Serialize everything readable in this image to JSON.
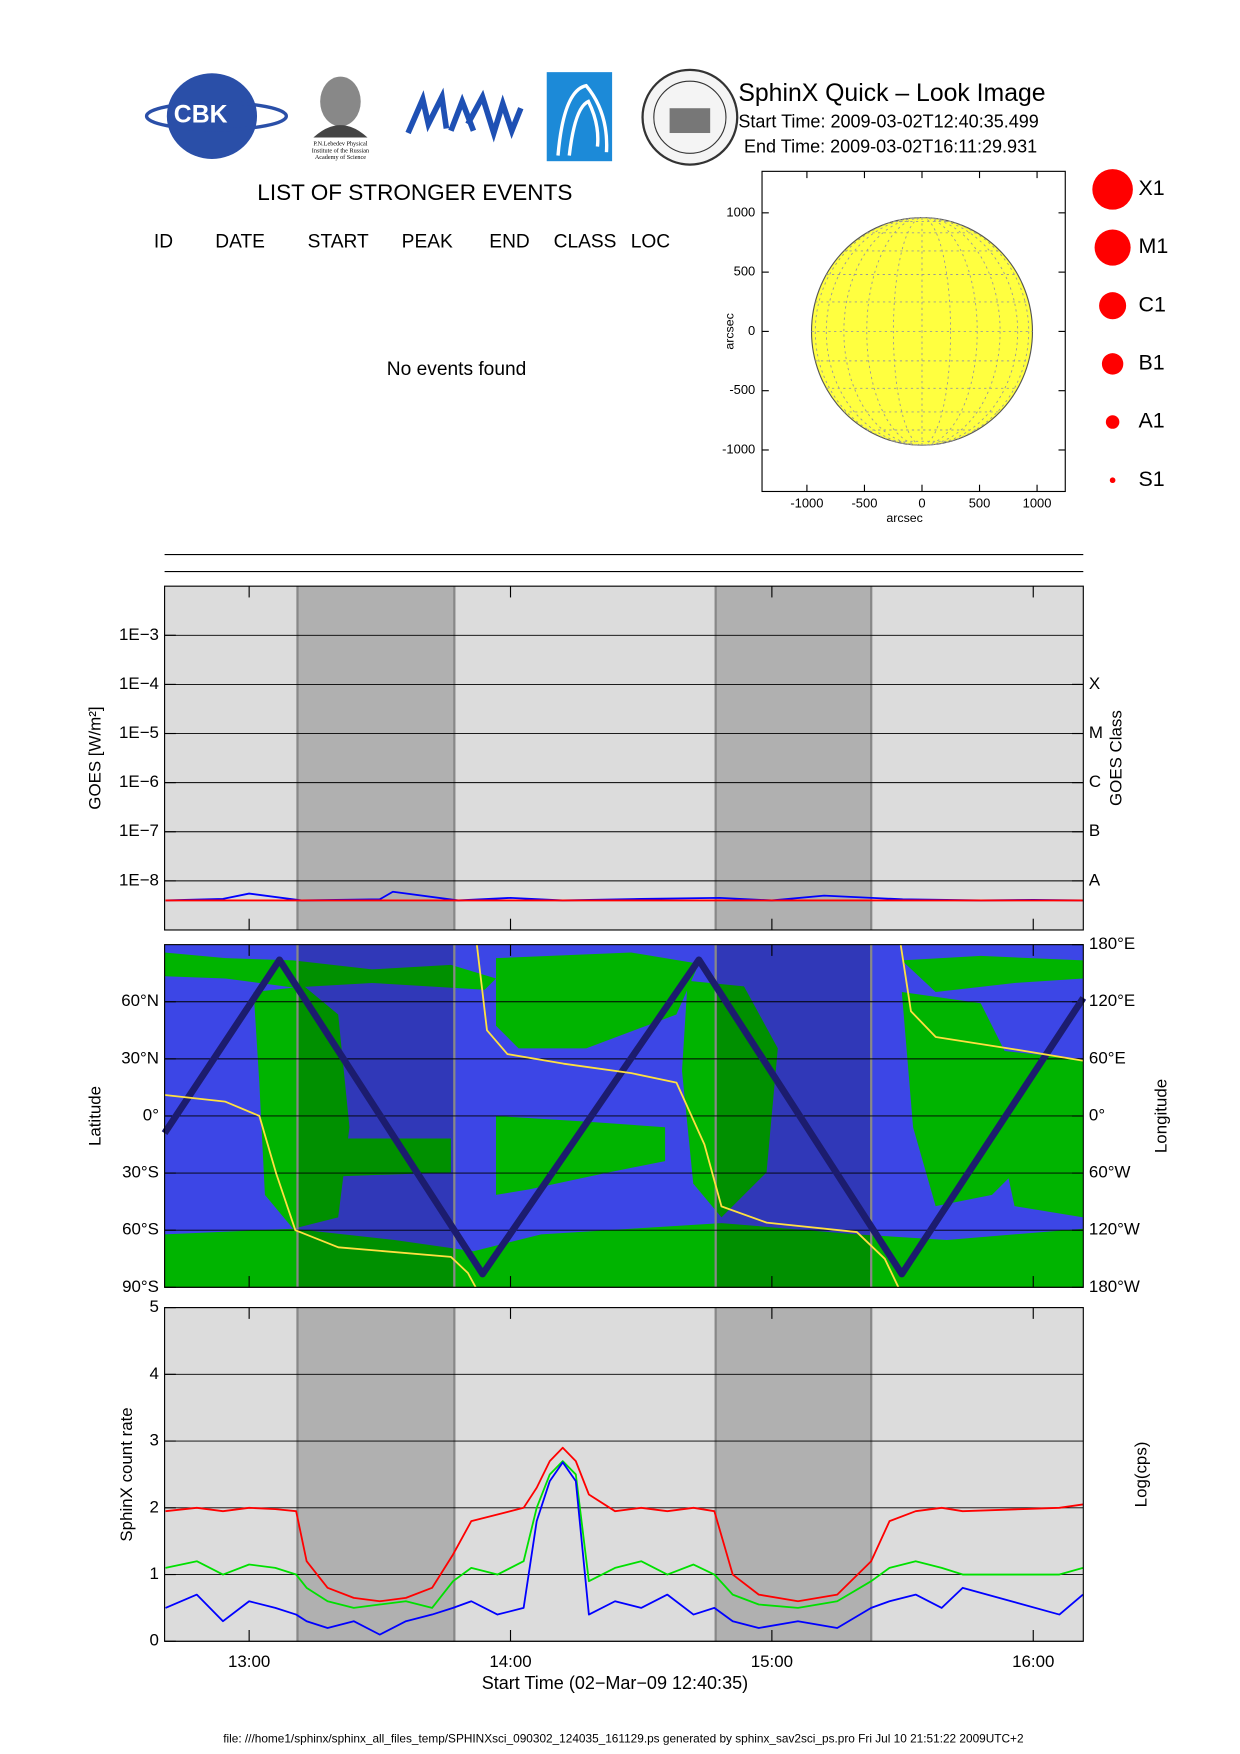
{
  "header": {
    "title": "SphinX Quick – Look Image",
    "start_time": "Start Time: 2009-03-02T12:40:35.499",
    "end_time": "End Time: 2009-03-02T16:11:29.931",
    "cbk_logo": "CBK",
    "lebedev_caption": [
      "P.N.Lebedev Physical",
      "Institute of the Russian",
      "Academy of Science"
    ]
  },
  "events": {
    "title": "LIST OF STRONGER EVENTS",
    "columns": [
      "ID",
      "DATE",
      "START",
      "PEAK",
      "END",
      "CLASS",
      "LOC"
    ],
    "message": "No events found"
  },
  "chart_data": [
    {
      "type": "disk",
      "xlabel": "arcsec",
      "ylabel": "arcsec",
      "xlim": [
        -1390,
        1245
      ],
      "ylim": [
        -1350,
        1350
      ],
      "xticks": [
        -1000,
        -500,
        0,
        500,
        1000
      ],
      "yticks": [
        -1000,
        -500,
        0,
        500,
        1000
      ],
      "radius": 960,
      "color": "#ffff40",
      "legend": [
        "X1",
        "M1",
        "C1",
        "B1",
        "A1",
        "S1"
      ],
      "legend_color": "#ff0000"
    },
    {
      "type": "line",
      "log": true,
      "ylabel": "GOES [W/m²]",
      "y2label": "GOES Class",
      "background": "#dcdcdc",
      "grid": true,
      "xlim": [
        12.6765,
        16.1915
      ],
      "xticks": [
        13,
        14,
        15,
        16
      ],
      "shaded": [
        [
          13.185,
          13.785
        ],
        [
          14.785,
          15.38
        ]
      ],
      "ylim": [
        1e-09,
        0.01
      ],
      "yticks": [
        {
          "value": 0.001,
          "label": "1E−3"
        },
        {
          "value": 0.0001,
          "label": "1E−4"
        },
        {
          "value": 1e-05,
          "label": "1E−5"
        },
        {
          "value": 1e-06,
          "label": "1E−6"
        },
        {
          "value": 1e-07,
          "label": "1E−7"
        },
        {
          "value": 1e-08,
          "label": "1E−8"
        }
      ],
      "y2ticks": [
        {
          "value": 0.0001,
          "label": "X"
        },
        {
          "value": 1e-05,
          "label": "M"
        },
        {
          "value": 1e-06,
          "label": "C"
        },
        {
          "value": 1e-07,
          "label": "B"
        },
        {
          "value": 1e-08,
          "label": "A"
        }
      ],
      "x": [
        12.68,
        12.9,
        13.0,
        13.2,
        13.5,
        13.55,
        13.8,
        14.0,
        14.2,
        14.5,
        14.8,
        15.0,
        15.2,
        15.5,
        15.8,
        16.0,
        16.19
      ],
      "series": [
        {
          "color": "#0000ff",
          "values": [
            4e-09,
            4.3e-09,
            5.5e-09,
            4e-09,
            4.2e-09,
            6e-09,
            4e-09,
            4.5e-09,
            4e-09,
            4.3e-09,
            4.5e-09,
            4e-09,
            5e-09,
            4.2e-09,
            4e-09,
            4.1e-09,
            4e-09
          ]
        },
        {
          "color": "#ff0000",
          "values": [
            4e-09,
            4e-09,
            4e-09,
            4e-09,
            4e-09,
            4e-09,
            4e-09,
            4e-09,
            4e-09,
            4e-09,
            4e-09,
            4e-09,
            4e-09,
            4e-09,
            4e-09,
            4e-09,
            4e-09
          ]
        }
      ]
    },
    {
      "type": "line",
      "ylabel": "Latitude",
      "y2label": "Longitude",
      "background": "#3c46e6",
      "grid": true,
      "xlim": [
        12.6765,
        16.1915
      ],
      "xticks": [
        13,
        14,
        15,
        16
      ],
      "shaded": [
        [
          13.185,
          13.785
        ],
        [
          14.785,
          15.38
        ]
      ],
      "ylim": [
        -90,
        90
      ],
      "yticks": [
        {
          "value": 60,
          "label": "60°N"
        },
        {
          "value": 30,
          "label": "30°N"
        },
        {
          "value": 0,
          "label": "0°"
        },
        {
          "value": -30,
          "label": "30°S"
        },
        {
          "value": -60,
          "label": "60°S"
        },
        {
          "value": -90,
          "label": "90°S"
        }
      ],
      "y2lim": [
        -180,
        180
      ],
      "y2ticks": [
        {
          "value": 180,
          "label": "180°E"
        },
        {
          "value": 120,
          "label": "120°E"
        },
        {
          "value": 60,
          "label": "60°E"
        },
        {
          "value": 0,
          "label": "0°"
        },
        {
          "value": -60,
          "label": "60°W"
        },
        {
          "value": -120,
          "label": "120°W"
        },
        {
          "value": -180,
          "label": "180°W"
        }
      ],
      "series": [
        {
          "color": "#1c1c6e",
          "x": [
            12.6765,
            13.116,
            13.893,
            14.721,
            15.497,
            16.1915
          ],
          "values": [
            -9,
            82,
            -83,
            82,
            -83,
            62
          ]
        },
        {
          "color": "#ffe040",
          "axis": "y2",
          "x": [
            12.677,
            12.909,
            13.039,
            13.103,
            13.177,
            13.341,
            13.772,
            13.837,
            13.867,
            13.869,
            13.871,
            13.91,
            13.988,
            14.203,
            14.462,
            14.635,
            14.742,
            14.807,
            14.98,
            15.325,
            15.432,
            15.484,
            15.488,
            15.493,
            15.532,
            15.627,
            15.929,
            16.192
          ],
          "values": [
            22,
            15,
            0,
            -60,
            -120,
            -138,
            -148,
            -165,
            -180,
            null,
            180,
            90,
            65,
            55,
            45,
            35,
            -30,
            -95,
            -112,
            -122,
            -150,
            -180,
            null,
            180,
            110,
            83,
            70,
            58
          ]
        }
      ]
    },
    {
      "type": "line",
      "ylabel": "SphinX count rate",
      "y2label": "Log(cps)",
      "xlabel": "Start Time (02−Mar−09 12:40:35)",
      "background": "#dcdcdc",
      "grid": true,
      "xlim": [
        12.6765,
        16.1915
      ],
      "xticks": [
        {
          "value": 13,
          "label": "13:00"
        },
        {
          "value": 14,
          "label": "14:00"
        },
        {
          "value": 15,
          "label": "15:00"
        },
        {
          "value": 16,
          "label": "16:00"
        }
      ],
      "shaded": [
        [
          13.185,
          13.785
        ],
        [
          14.785,
          15.38
        ]
      ],
      "ylim": [
        0,
        5
      ],
      "yticks": [
        0,
        1,
        2,
        3,
        4,
        5
      ],
      "x": [
        12.68,
        12.8,
        12.9,
        13.0,
        13.1,
        13.18,
        13.22,
        13.3,
        13.4,
        13.5,
        13.6,
        13.7,
        13.78,
        13.85,
        13.95,
        14.05,
        14.1,
        14.15,
        14.2,
        14.25,
        14.3,
        14.4,
        14.5,
        14.6,
        14.7,
        14.78,
        14.85,
        14.95,
        15.1,
        15.25,
        15.38,
        15.45,
        15.55,
        15.65,
        15.73,
        16.1,
        16.19
      ],
      "series": [
        {
          "color": "#ff0000",
          "values": [
            1.95,
            2.0,
            1.95,
            2.0,
            1.98,
            1.95,
            1.2,
            0.8,
            0.65,
            0.6,
            0.65,
            0.8,
            1.3,
            1.8,
            1.9,
            2.0,
            2.3,
            2.7,
            2.9,
            2.7,
            2.2,
            1.95,
            2.0,
            1.95,
            2.0,
            1.95,
            1.0,
            0.7,
            0.6,
            0.7,
            1.2,
            1.8,
            1.95,
            2.0,
            1.95,
            2.0,
            2.05
          ]
        },
        {
          "color": "#00e000",
          "values": [
            1.1,
            1.2,
            1.0,
            1.15,
            1.1,
            1.0,
            0.8,
            0.6,
            0.5,
            0.55,
            0.6,
            0.5,
            0.9,
            1.1,
            1.0,
            1.2,
            2.0,
            2.5,
            2.7,
            2.5,
            0.9,
            1.1,
            1.2,
            1.0,
            1.15,
            1.0,
            0.7,
            0.55,
            0.5,
            0.6,
            0.9,
            1.1,
            1.2,
            1.1,
            1.0,
            1.0,
            1.1
          ]
        },
        {
          "color": "#0000ff",
          "values": [
            0.5,
            0.7,
            0.3,
            0.6,
            0.5,
            0.4,
            0.3,
            0.2,
            0.3,
            0.1,
            0.3,
            0.4,
            0.5,
            0.6,
            0.4,
            0.5,
            1.8,
            2.4,
            2.68,
            2.4,
            0.4,
            0.6,
            0.5,
            0.7,
            0.4,
            0.5,
            0.3,
            0.2,
            0.3,
            0.2,
            0.5,
            0.6,
            0.7,
            0.5,
            0.8,
            0.4,
            0.7
          ]
        }
      ]
    }
  ],
  "footer": "file: ///home1/sphinx/sphinx_all_files_temp/SPHINXsci_090302_124035_161129.ps generated by sphinx_sav2sci_ps.pro Fri Jul 10 21:51:22 2009UTC+2"
}
